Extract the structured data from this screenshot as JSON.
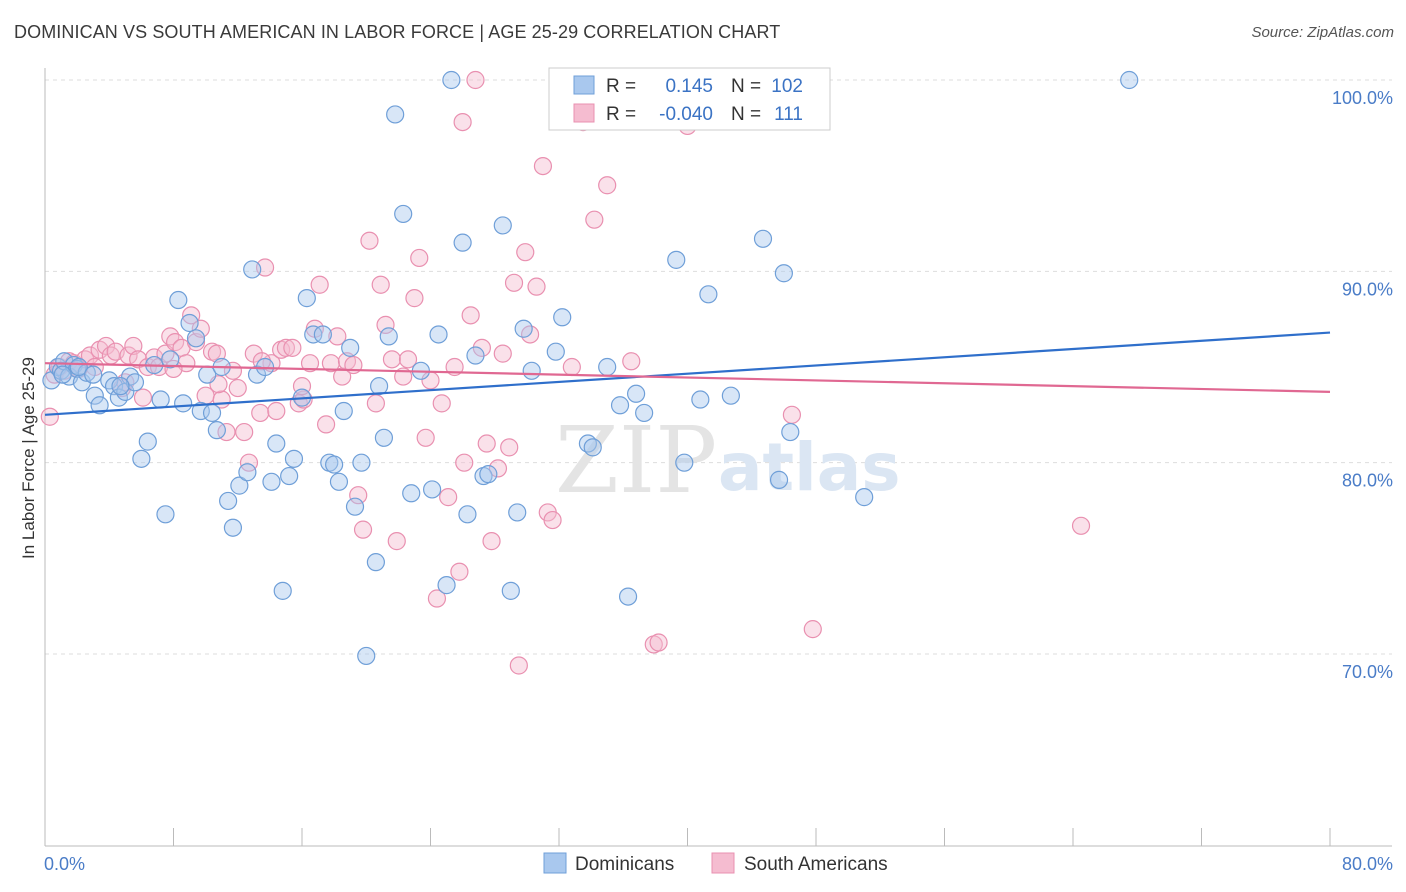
{
  "title": "DOMINICAN VS SOUTH AMERICAN IN LABOR FORCE | AGE 25-29 CORRELATION CHART",
  "source": "Source: ZipAtlas.com",
  "colors": {
    "blue_fill": "#a9c8ee",
    "blue_stroke": "#6f9fd8",
    "blue_line": "#2f6fcb",
    "pink_fill": "#f5bcd0",
    "pink_stroke": "#e990b0",
    "pink_line": "#e06892",
    "tick_text": "#4a7cc7",
    "grid": "#dddddd"
  },
  "legend": {
    "r_label": "R =",
    "n_label": "N =",
    "series": [
      {
        "name": "Dominicans",
        "r": "0.145",
        "n": "102"
      },
      {
        "name": "South Americans",
        "r": "-0.040",
        "n": "111"
      }
    ]
  },
  "watermark": {
    "zip": "ZIP",
    "atlas": "atlas"
  },
  "chart_data": {
    "type": "scatter",
    "title": "DOMINICAN VS SOUTH AMERICAN IN LABOR FORCE | AGE 25-29 CORRELATION CHART",
    "xlabel": "",
    "ylabel": "In Labor Force | Age 25-29",
    "xlim": [
      0,
      80
    ],
    "ylim": [
      60,
      102
    ],
    "x_tick_labels": [
      "0.0%",
      "80.0%"
    ],
    "y_ticks": [
      70,
      80,
      90,
      100
    ],
    "y_tick_labels": [
      "70.0%",
      "80.0%",
      "90.0%",
      "100.0%"
    ],
    "series": [
      {
        "name": "Dominicans",
        "color": "blue",
        "trend": {
          "x": [
            0,
            80
          ],
          "y": [
            82.5,
            86.8
          ]
        },
        "points": [
          [
            0.4,
            84.3
          ],
          [
            0.8,
            85.0
          ],
          [
            1.0,
            84.8
          ],
          [
            1.2,
            85.3
          ],
          [
            1.5,
            84.5
          ],
          [
            1.8,
            85.1
          ],
          [
            2.0,
            84.9
          ],
          [
            2.3,
            84.2
          ],
          [
            2.6,
            84.7
          ],
          [
            3.1,
            83.5
          ],
          [
            3.4,
            83.0
          ],
          [
            4.0,
            84.3
          ],
          [
            4.3,
            84.0
          ],
          [
            4.6,
            83.4
          ],
          [
            5.0,
            83.7
          ],
          [
            5.3,
            84.5
          ],
          [
            5.6,
            84.2
          ],
          [
            6.0,
            80.2
          ],
          [
            6.4,
            81.1
          ],
          [
            6.8,
            85.1
          ],
          [
            7.2,
            83.3
          ],
          [
            7.5,
            77.3
          ],
          [
            7.8,
            85.4
          ],
          [
            8.3,
            88.5
          ],
          [
            8.6,
            83.1
          ],
          [
            9.0,
            87.3
          ],
          [
            9.4,
            86.5
          ],
          [
            9.7,
            82.7
          ],
          [
            10.1,
            84.6
          ],
          [
            10.4,
            82.6
          ],
          [
            10.7,
            81.7
          ],
          [
            11.0,
            85.0
          ],
          [
            11.4,
            78.0
          ],
          [
            11.7,
            76.6
          ],
          [
            12.1,
            78.8
          ],
          [
            12.6,
            79.5
          ],
          [
            12.9,
            90.1
          ],
          [
            13.2,
            84.6
          ],
          [
            13.7,
            85.0
          ],
          [
            14.1,
            79.0
          ],
          [
            14.4,
            81.0
          ],
          [
            14.8,
            73.3
          ],
          [
            15.2,
            79.3
          ],
          [
            15.5,
            80.2
          ],
          [
            16.0,
            83.4
          ],
          [
            16.3,
            88.6
          ],
          [
            16.7,
            86.7
          ],
          [
            17.3,
            86.7
          ],
          [
            17.7,
            80.0
          ],
          [
            18.0,
            79.9
          ],
          [
            18.3,
            79.0
          ],
          [
            18.6,
            82.7
          ],
          [
            19.0,
            86.0
          ],
          [
            19.3,
            77.7
          ],
          [
            19.7,
            80.0
          ],
          [
            20.0,
            69.9
          ],
          [
            20.6,
            74.8
          ],
          [
            20.8,
            84.0
          ],
          [
            21.1,
            81.3
          ],
          [
            21.4,
            86.6
          ],
          [
            21.8,
            98.2
          ],
          [
            22.3,
            93.0
          ],
          [
            22.8,
            78.4
          ],
          [
            23.4,
            84.8
          ],
          [
            24.1,
            78.6
          ],
          [
            24.5,
            86.7
          ],
          [
            25.0,
            73.6
          ],
          [
            25.3,
            100.0
          ],
          [
            26.0,
            91.5
          ],
          [
            26.3,
            77.3
          ],
          [
            26.8,
            85.6
          ],
          [
            27.3,
            79.3
          ],
          [
            27.6,
            79.4
          ],
          [
            28.5,
            92.4
          ],
          [
            29.0,
            73.3
          ],
          [
            29.4,
            77.4
          ],
          [
            29.8,
            87.0
          ],
          [
            30.3,
            84.8
          ],
          [
            31.8,
            85.8
          ],
          [
            32.2,
            87.6
          ],
          [
            33.8,
            81.0
          ],
          [
            34.1,
            80.8
          ],
          [
            35.0,
            85.0
          ],
          [
            35.8,
            83.0
          ],
          [
            36.3,
            73.0
          ],
          [
            36.8,
            83.6
          ],
          [
            37.3,
            82.6
          ],
          [
            39.3,
            90.6
          ],
          [
            39.8,
            80.0
          ],
          [
            40.8,
            83.3
          ],
          [
            41.3,
            88.8
          ],
          [
            42.7,
            83.5
          ],
          [
            44.7,
            91.7
          ],
          [
            45.7,
            79.1
          ],
          [
            46.0,
            89.9
          ],
          [
            46.4,
            81.6
          ],
          [
            51.0,
            78.2
          ],
          [
            67.5,
            100.0
          ],
          [
            1.1,
            84.6
          ],
          [
            2.1,
            85.0
          ],
          [
            3.0,
            84.6
          ],
          [
            4.7,
            84.0
          ]
        ]
      },
      {
        "name": "South Americans",
        "color": "pink",
        "trend": {
          "x": [
            0,
            80
          ],
          "y": [
            85.2,
            83.7
          ]
        },
        "points": [
          [
            0.3,
            82.4
          ],
          [
            0.6,
            84.6
          ],
          [
            0.9,
            85.0
          ],
          [
            1.2,
            84.8
          ],
          [
            1.5,
            85.3
          ],
          [
            1.8,
            85.2
          ],
          [
            2.1,
            84.9
          ],
          [
            2.5,
            85.4
          ],
          [
            2.8,
            85.6
          ],
          [
            3.1,
            85.0
          ],
          [
            3.4,
            85.9
          ],
          [
            3.8,
            86.1
          ],
          [
            4.1,
            85.6
          ],
          [
            4.4,
            85.8
          ],
          [
            4.8,
            83.9
          ],
          [
            5.2,
            85.6
          ],
          [
            5.5,
            86.1
          ],
          [
            5.8,
            85.4
          ],
          [
            6.1,
            83.4
          ],
          [
            6.4,
            85.0
          ],
          [
            6.8,
            85.5
          ],
          [
            7.1,
            85.0
          ],
          [
            7.5,
            85.7
          ],
          [
            7.8,
            86.6
          ],
          [
            8.1,
            86.3
          ],
          [
            8.5,
            86.0
          ],
          [
            8.8,
            85.2
          ],
          [
            9.1,
            87.7
          ],
          [
            9.4,
            86.3
          ],
          [
            9.7,
            87.0
          ],
          [
            10.0,
            83.5
          ],
          [
            10.4,
            85.8
          ],
          [
            10.7,
            85.7
          ],
          [
            11.0,
            83.3
          ],
          [
            11.3,
            81.6
          ],
          [
            11.7,
            84.8
          ],
          [
            12.0,
            83.9
          ],
          [
            12.4,
            81.6
          ],
          [
            12.7,
            80.0
          ],
          [
            13.0,
            85.7
          ],
          [
            13.4,
            82.6
          ],
          [
            13.7,
            90.2
          ],
          [
            14.1,
            85.2
          ],
          [
            14.4,
            82.7
          ],
          [
            14.7,
            85.9
          ],
          [
            15.0,
            86.0
          ],
          [
            15.4,
            86.0
          ],
          [
            15.8,
            83.1
          ],
          [
            16.1,
            83.3
          ],
          [
            16.5,
            85.2
          ],
          [
            16.8,
            87.0
          ],
          [
            17.1,
            89.3
          ],
          [
            17.5,
            82.0
          ],
          [
            17.8,
            85.2
          ],
          [
            18.2,
            86.6
          ],
          [
            18.5,
            84.5
          ],
          [
            18.8,
            85.3
          ],
          [
            19.2,
            85.1
          ],
          [
            19.5,
            78.3
          ],
          [
            19.8,
            76.5
          ],
          [
            20.2,
            91.6
          ],
          [
            20.6,
            83.1
          ],
          [
            20.9,
            89.3
          ],
          [
            21.2,
            87.2
          ],
          [
            21.6,
            85.4
          ],
          [
            21.9,
            75.9
          ],
          [
            22.3,
            84.5
          ],
          [
            22.6,
            85.4
          ],
          [
            23.0,
            88.6
          ],
          [
            23.3,
            90.7
          ],
          [
            23.7,
            81.3
          ],
          [
            24.0,
            84.3
          ],
          [
            24.4,
            72.9
          ],
          [
            24.7,
            83.1
          ],
          [
            25.1,
            78.2
          ],
          [
            25.5,
            85.0
          ],
          [
            25.8,
            74.3
          ],
          [
            26.1,
            80.0
          ],
          [
            26.5,
            87.7
          ],
          [
            26.8,
            100.0
          ],
          [
            27.2,
            86.0
          ],
          [
            27.5,
            81.0
          ],
          [
            27.8,
            75.9
          ],
          [
            28.2,
            79.7
          ],
          [
            28.5,
            85.7
          ],
          [
            28.9,
            80.8
          ],
          [
            29.2,
            89.4
          ],
          [
            29.5,
            69.4
          ],
          [
            29.9,
            91.0
          ],
          [
            30.2,
            86.7
          ],
          [
            30.6,
            89.2
          ],
          [
            31.0,
            95.5
          ],
          [
            31.3,
            77.4
          ],
          [
            31.6,
            77.0
          ],
          [
            33.5,
            97.8
          ],
          [
            34.2,
            92.7
          ],
          [
            35.0,
            94.5
          ],
          [
            36.5,
            85.3
          ],
          [
            37.9,
            70.5
          ],
          [
            38.2,
            70.6
          ],
          [
            40.0,
            97.6
          ],
          [
            46.5,
            82.5
          ],
          [
            47.8,
            71.3
          ],
          [
            64.5,
            76.7
          ],
          [
            26.0,
            97.8
          ],
          [
            32.8,
            85.0
          ],
          [
            5.0,
            84.2
          ],
          [
            8.0,
            84.9
          ],
          [
            10.8,
            84.1
          ],
          [
            13.5,
            85.3
          ],
          [
            16.0,
            84.0
          ]
        ]
      }
    ]
  }
}
